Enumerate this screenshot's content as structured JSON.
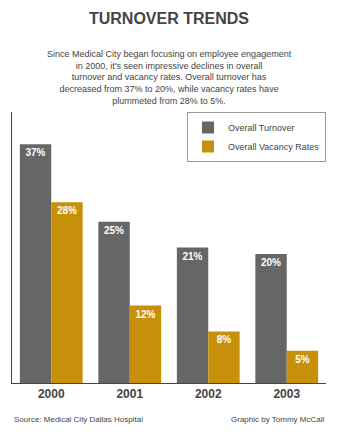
{
  "chart_data": {
    "type": "bar",
    "title": "TURNOVER TRENDS",
    "subtitle": "Since Medical City began focusing on employee engagement\nin 2000, it's seen impressive declines in overall\nturnover and vacancy rates. Overall turnover has\ndecreased from 37% to 20%, while vacancy rates have\nplummeted from 28% to 5%.",
    "categories": [
      "2000",
      "2001",
      "2002",
      "2003"
    ],
    "series": [
      {
        "name": "Overall Turnover",
        "color": "#666666",
        "values": [
          37,
          25,
          21,
          20
        ],
        "value_labels": [
          "37%",
          "25%",
          "21%",
          "20%"
        ]
      },
      {
        "name": "Overall Vacancy Rates",
        "color": "#C8900A",
        "values": [
          28,
          12,
          8,
          5
        ],
        "value_labels": [
          "28%",
          "12%",
          "8%",
          "5%"
        ]
      }
    ],
    "ylim": [
      0,
      42
    ],
    "data_labels": true,
    "legend": "upper right",
    "grid": false,
    "tick_labels": "x",
    "annotations": [
      "Source: Medical City Dallas Hospital",
      "Graphic by Tommy McCall"
    ]
  }
}
